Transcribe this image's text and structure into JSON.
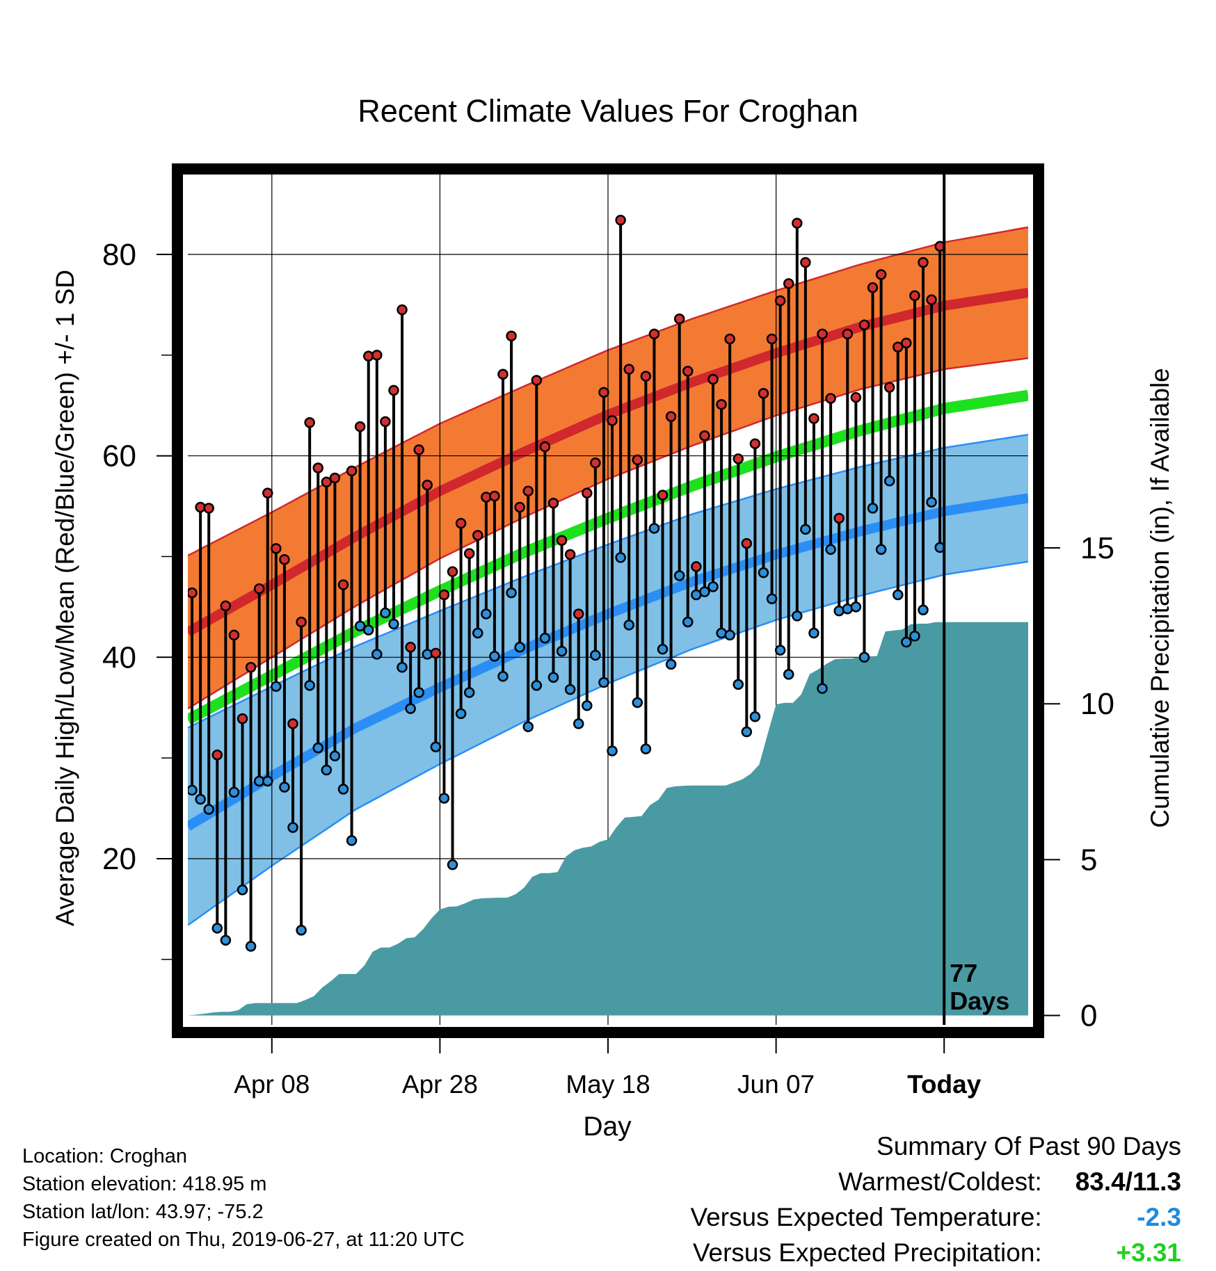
{
  "chart_data": {
    "type": "line",
    "title": "Recent Climate Values For Croghan",
    "xlabel": "Day",
    "ylabel": "Average Daily High/Low/Mean (Red/Blue/Green) +/- 1 SD",
    "y2label": "Cumulative Precipitation (in), If Available",
    "x_tick_labels": [
      "Apr 08",
      "Apr 28",
      "May 18",
      "Jun 07",
      "Today"
    ],
    "y_ticks": [
      20,
      40,
      60,
      80
    ],
    "y2_ticks": [
      0,
      5,
      10,
      15
    ],
    "ylim": [
      3.5,
      88
    ],
    "y2lim": [
      -0.3,
      27
    ],
    "xlim": [
      0,
      100
    ],
    "today_x": 90,
    "today_label": "77\nDays",
    "grid": true,
    "normal_high": [
      [
        0,
        42.5
      ],
      [
        10,
        47.2
      ],
      [
        20,
        52
      ],
      [
        30,
        56.5
      ],
      [
        40,
        60.4
      ],
      [
        50,
        64.1
      ],
      [
        60,
        67.3
      ],
      [
        70,
        70.2
      ],
      [
        80,
        72.8
      ],
      [
        90,
        74.9
      ],
      [
        100,
        76.2
      ]
    ],
    "normal_high_sd": [
      7.6,
      7.2,
      6.9,
      6.7,
      6.5,
      6.4,
      6.3,
      6.2,
      6.2,
      6.3,
      6.5
    ],
    "normal_mean": [
      [
        0,
        33.8
      ],
      [
        10,
        38.2
      ],
      [
        20,
        42.6
      ],
      [
        30,
        46.6
      ],
      [
        40,
        50.4
      ],
      [
        50,
        53.8
      ],
      [
        60,
        57.0
      ],
      [
        70,
        59.9
      ],
      [
        80,
        62.5
      ],
      [
        90,
        64.7
      ],
      [
        100,
        66.0
      ]
    ],
    "normal_low": [
      [
        0,
        23.2
      ],
      [
        10,
        28.2
      ],
      [
        20,
        33.0
      ],
      [
        30,
        37.0
      ],
      [
        40,
        40.8
      ],
      [
        50,
        44.3
      ],
      [
        60,
        47.5
      ],
      [
        70,
        50.2
      ],
      [
        80,
        52.5
      ],
      [
        90,
        54.5
      ],
      [
        100,
        55.8
      ]
    ],
    "normal_low_sd": [
      9.8,
      8.9,
      8.1,
      7.6,
      7.2,
      6.9,
      6.7,
      6.5,
      6.4,
      6.3,
      6.3
    ],
    "daily_high": [
      46.4,
      54.9,
      54.8,
      30.3,
      45.1,
      42.2,
      33.9,
      39.0,
      46.8,
      56.3,
      50.8,
      49.7,
      33.4,
      43.5,
      63.3,
      58.8,
      57.4,
      57.8,
      47.2,
      58.5,
      62.9,
      69.9,
      70.0,
      63.4,
      66.5,
      74.5,
      41.0,
      60.6,
      57.1,
      40.4,
      46.2,
      48.5,
      53.3,
      50.3,
      52.1,
      55.9,
      56.0,
      68.1,
      71.9,
      54.9,
      56.5,
      67.5,
      60.9,
      55.3,
      51.6,
      50.2,
      44.3,
      56.3,
      59.3,
      66.3,
      63.5,
      83.4,
      68.6,
      59.6,
      67.9,
      72.1,
      56.1,
      63.9,
      73.6,
      68.4,
      49.0,
      62.0,
      67.6,
      65.1,
      71.6,
      59.7,
      51.3,
      61.2,
      66.2,
      71.6,
      75.4,
      77.1,
      83.1,
      79.2,
      63.7,
      72.1,
      65.7,
      53.8,
      72.1,
      65.8,
      73.0,
      76.7,
      78.0,
      66.8,
      70.8,
      71.2,
      75.9,
      79.2,
      75.5,
      80.8
    ],
    "daily_low": [
      26.8,
      25.9,
      24.9,
      13.1,
      11.9,
      26.6,
      16.9,
      11.3,
      27.7,
      27.7,
      37.1,
      27.1,
      23.1,
      12.9,
      37.2,
      31.0,
      28.8,
      30.2,
      26.9,
      21.8,
      43.1,
      42.7,
      40.3,
      44.4,
      43.3,
      39.0,
      34.9,
      36.5,
      40.3,
      31.1,
      26.0,
      19.4,
      34.4,
      36.5,
      42.4,
      44.3,
      40.1,
      38.1,
      46.4,
      41.0,
      33.1,
      37.2,
      41.9,
      38.0,
      40.6,
      36.8,
      33.4,
      35.2,
      40.2,
      37.5,
      30.7,
      49.9,
      43.2,
      35.5,
      30.9,
      52.8,
      40.8,
      39.3,
      48.1,
      43.5,
      46.2,
      46.5,
      47.0,
      42.4,
      42.2,
      37.3,
      32.6,
      34.1,
      48.4,
      45.8,
      40.7,
      38.3,
      44.1,
      52.7,
      42.4,
      36.9,
      50.7,
      44.6,
      44.8,
      45.0,
      40.0,
      54.8,
      50.7,
      57.5,
      46.2,
      41.5,
      42.1,
      44.7,
      55.4,
      50.9
    ],
    "precip_cumulative": [
      [
        0,
        0.0
      ],
      [
        1,
        0.03
      ],
      [
        2,
        0.06
      ],
      [
        3,
        0.1
      ],
      [
        4,
        0.12
      ],
      [
        5,
        0.12
      ],
      [
        6,
        0.17
      ],
      [
        7,
        0.36
      ],
      [
        8,
        0.4
      ],
      [
        9,
        0.4
      ],
      [
        10,
        0.4
      ],
      [
        11,
        0.4
      ],
      [
        12,
        0.4
      ],
      [
        13,
        0.4
      ],
      [
        14,
        0.5
      ],
      [
        15,
        0.62
      ],
      [
        16,
        0.9
      ],
      [
        17,
        1.1
      ],
      [
        18,
        1.33
      ],
      [
        19,
        1.33
      ],
      [
        20,
        1.33
      ],
      [
        21,
        1.6
      ],
      [
        22,
        2.05
      ],
      [
        23,
        2.18
      ],
      [
        24,
        2.18
      ],
      [
        25,
        2.3
      ],
      [
        26,
        2.48
      ],
      [
        27,
        2.51
      ],
      [
        28,
        2.77
      ],
      [
        29,
        3.12
      ],
      [
        30,
        3.4
      ],
      [
        31,
        3.49
      ],
      [
        32,
        3.5
      ],
      [
        33,
        3.6
      ],
      [
        34,
        3.72
      ],
      [
        35,
        3.76
      ],
      [
        36,
        3.77
      ],
      [
        37,
        3.78
      ],
      [
        38,
        3.78
      ],
      [
        39,
        3.89
      ],
      [
        40,
        4.1
      ],
      [
        41,
        4.45
      ],
      [
        42,
        4.57
      ],
      [
        43,
        4.57
      ],
      [
        44,
        4.6
      ],
      [
        45,
        5.1
      ],
      [
        46,
        5.3
      ],
      [
        47,
        5.38
      ],
      [
        48,
        5.42
      ],
      [
        49,
        5.57
      ],
      [
        50,
        5.65
      ],
      [
        51,
        6.04
      ],
      [
        52,
        6.35
      ],
      [
        53,
        6.37
      ],
      [
        54,
        6.4
      ],
      [
        55,
        6.75
      ],
      [
        56,
        6.92
      ],
      [
        57,
        7.3
      ],
      [
        58,
        7.35
      ],
      [
        59,
        7.37
      ],
      [
        60,
        7.38
      ],
      [
        61,
        7.38
      ],
      [
        62,
        7.38
      ],
      [
        63,
        7.38
      ],
      [
        64,
        7.38
      ],
      [
        65,
        7.48
      ],
      [
        66,
        7.58
      ],
      [
        67,
        7.76
      ],
      [
        68,
        8.05
      ],
      [
        69,
        9.03
      ],
      [
        70,
        9.98
      ],
      [
        71,
        10.03
      ],
      [
        72,
        10.03
      ],
      [
        73,
        10.3
      ],
      [
        74,
        10.95
      ],
      [
        75,
        11.1
      ],
      [
        76,
        11.28
      ],
      [
        77,
        11.43
      ],
      [
        78,
        11.45
      ],
      [
        79,
        11.45
      ],
      [
        80,
        11.5
      ],
      [
        81,
        11.52
      ],
      [
        82,
        11.53
      ],
      [
        83,
        12.32
      ],
      [
        84,
        12.35
      ],
      [
        85,
        12.38
      ],
      [
        86,
        12.55
      ],
      [
        87,
        12.57
      ],
      [
        88,
        12.57
      ],
      [
        89,
        12.62
      ],
      [
        90,
        12.62
      ],
      [
        91,
        12.62
      ],
      [
        92,
        12.62
      ],
      [
        93,
        12.62
      ],
      [
        94,
        12.62
      ],
      [
        95,
        12.62
      ],
      [
        96,
        12.62
      ],
      [
        97,
        12.62
      ],
      [
        98,
        12.62
      ],
      [
        99,
        12.62
      ],
      [
        100,
        12.62
      ]
    ],
    "colors": {
      "high_band": "#f37a33",
      "high_line": "#d0282c",
      "low_band": "#80bfe6",
      "low_line": "#2a8ef5",
      "mean_line": "#1fe01f",
      "precip": "#4a9aa3",
      "high_dot": "#d23030",
      "low_dot": "#2f8fd8"
    }
  },
  "info": {
    "location": "Location: Croghan",
    "elevation": "Station elevation: 418.95 m",
    "latlon": "Station lat/lon: 43.97; -75.2",
    "created": "Figure created on Thu, 2019-06-27, at 11:20 UTC"
  },
  "summary": {
    "title": "Summary Of Past 90 Days",
    "warm_cold_label": "Warmest/Coldest:",
    "warm_cold_value": "83.4/11.3",
    "temp_label": "Versus Expected Temperature:",
    "temp_value": "-2.3",
    "precip_label": "Versus Expected Precipitation:",
    "precip_value": "+3.31"
  }
}
